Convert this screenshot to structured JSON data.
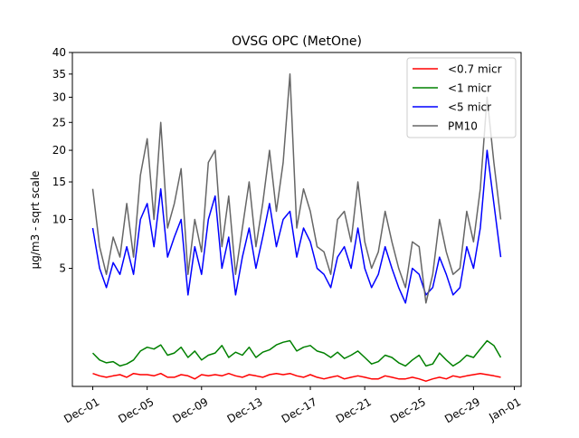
{
  "chart_data": {
    "type": "line",
    "title": "OVSG OPC (MetOne)",
    "xlabel": "",
    "ylabel": "μg/m3 - sqrt scale",
    "y_scale": "sqrt",
    "ylim": [
      0,
      40
    ],
    "xlim": [
      "2019-11-29T12:00",
      "2020-01-01T12:00"
    ],
    "x_ticks": [
      "Dec-01",
      "Dec-05",
      "Dec-09",
      "Dec-13",
      "Dec-17",
      "Dec-21",
      "Dec-25",
      "Dec-29",
      "Jan-01"
    ],
    "x_tick_dates": [
      "2019-12-01",
      "2019-12-05",
      "2019-12-09",
      "2019-12-13",
      "2019-12-17",
      "2019-12-21",
      "2019-12-25",
      "2019-12-29",
      "2020-01-01"
    ],
    "y_ticks": [
      5,
      10,
      15,
      20,
      25,
      30,
      35,
      40
    ],
    "grid": false,
    "legend_position": "top-right",
    "series": [
      {
        "name": "<0.7 micr",
        "color": "#ff0000",
        "x": [
          "2019-12-01T00:00",
          "2019-12-01T12:00",
          "2019-12-02T00:00",
          "2019-12-02T12:00",
          "2019-12-03T00:00",
          "2019-12-03T12:00",
          "2019-12-04T00:00",
          "2019-12-04T12:00",
          "2019-12-05T00:00",
          "2019-12-05T12:00",
          "2019-12-06T00:00",
          "2019-12-06T12:00",
          "2019-12-07T00:00",
          "2019-12-07T12:00",
          "2019-12-08T00:00",
          "2019-12-08T12:00",
          "2019-12-09T00:00",
          "2019-12-09T12:00",
          "2019-12-10T00:00",
          "2019-12-10T12:00",
          "2019-12-11T00:00",
          "2019-12-11T12:00",
          "2019-12-12T00:00",
          "2019-12-12T12:00",
          "2019-12-13T00:00",
          "2019-12-13T12:00",
          "2019-12-14T00:00",
          "2019-12-14T12:00",
          "2019-12-15T00:00",
          "2019-12-15T12:00",
          "2019-12-16T00:00",
          "2019-12-16T12:00",
          "2019-12-17T00:00",
          "2019-12-17T12:00",
          "2019-12-18T00:00",
          "2019-12-18T12:00",
          "2019-12-19T00:00",
          "2019-12-19T12:00",
          "2019-12-20T00:00",
          "2019-12-20T12:00",
          "2019-12-21T00:00",
          "2019-12-21T12:00",
          "2019-12-22T00:00",
          "2019-12-22T12:00",
          "2019-12-23T00:00",
          "2019-12-23T12:00",
          "2019-12-24T00:00",
          "2019-12-24T12:00",
          "2019-12-25T00:00",
          "2019-12-25T12:00",
          "2019-12-26T00:00",
          "2019-12-26T12:00",
          "2019-12-27T00:00",
          "2019-12-27T12:00",
          "2019-12-28T00:00",
          "2019-12-28T12:00",
          "2019-12-29T00:00",
          "2019-12-29T12:00",
          "2019-12-30T00:00",
          "2019-12-30T12:00",
          "2019-12-31T00:00"
        ],
        "values": [
          0.06,
          0.04,
          0.03,
          0.04,
          0.05,
          0.03,
          0.06,
          0.05,
          0.05,
          0.04,
          0.06,
          0.03,
          0.03,
          0.05,
          0.04,
          0.02,
          0.05,
          0.04,
          0.05,
          0.04,
          0.06,
          0.04,
          0.03,
          0.05,
          0.04,
          0.03,
          0.05,
          0.06,
          0.05,
          0.06,
          0.04,
          0.03,
          0.05,
          0.03,
          0.02,
          0.03,
          0.04,
          0.02,
          0.03,
          0.04,
          0.03,
          0.02,
          0.02,
          0.04,
          0.03,
          0.02,
          0.02,
          0.03,
          0.02,
          0.01,
          0.02,
          0.03,
          0.02,
          0.04,
          0.03,
          0.04,
          0.05,
          0.06,
          0.05,
          0.04,
          0.03
        ]
      },
      {
        "name": "<1 micr",
        "color": "#008000",
        "x": [
          "2019-12-01T00:00",
          "2019-12-01T12:00",
          "2019-12-02T00:00",
          "2019-12-02T12:00",
          "2019-12-03T00:00",
          "2019-12-03T12:00",
          "2019-12-04T00:00",
          "2019-12-04T12:00",
          "2019-12-05T00:00",
          "2019-12-05T12:00",
          "2019-12-06T00:00",
          "2019-12-06T12:00",
          "2019-12-07T00:00",
          "2019-12-07T12:00",
          "2019-12-08T00:00",
          "2019-12-08T12:00",
          "2019-12-09T00:00",
          "2019-12-09T12:00",
          "2019-12-10T00:00",
          "2019-12-10T12:00",
          "2019-12-11T00:00",
          "2019-12-11T12:00",
          "2019-12-12T00:00",
          "2019-12-12T12:00",
          "2019-12-13T00:00",
          "2019-12-13T12:00",
          "2019-12-14T00:00",
          "2019-12-14T12:00",
          "2019-12-15T00:00",
          "2019-12-15T12:00",
          "2019-12-16T00:00",
          "2019-12-16T12:00",
          "2019-12-17T00:00",
          "2019-12-17T12:00",
          "2019-12-18T00:00",
          "2019-12-18T12:00",
          "2019-12-19T00:00",
          "2019-12-19T12:00",
          "2019-12-20T00:00",
          "2019-12-20T12:00",
          "2019-12-21T00:00",
          "2019-12-21T12:00",
          "2019-12-22T00:00",
          "2019-12-22T12:00",
          "2019-12-23T00:00",
          "2019-12-23T12:00",
          "2019-12-24T00:00",
          "2019-12-24T12:00",
          "2019-12-25T00:00",
          "2019-12-25T12:00",
          "2019-12-26T00:00",
          "2019-12-26T12:00",
          "2019-12-27T00:00",
          "2019-12-27T12:00",
          "2019-12-28T00:00",
          "2019-12-28T12:00",
          "2019-12-29T00:00",
          "2019-12-29T12:00",
          "2019-12-30T00:00",
          "2019-12-30T12:00",
          "2019-12-31T00:00"
        ],
        "values": [
          0.4,
          0.25,
          0.2,
          0.22,
          0.15,
          0.18,
          0.25,
          0.45,
          0.55,
          0.5,
          0.62,
          0.35,
          0.4,
          0.55,
          0.3,
          0.45,
          0.25,
          0.35,
          0.4,
          0.6,
          0.3,
          0.42,
          0.35,
          0.55,
          0.3,
          0.42,
          0.48,
          0.62,
          0.7,
          0.75,
          0.45,
          0.55,
          0.6,
          0.45,
          0.4,
          0.3,
          0.42,
          0.28,
          0.35,
          0.45,
          0.3,
          0.18,
          0.22,
          0.35,
          0.3,
          0.2,
          0.15,
          0.25,
          0.35,
          0.15,
          0.18,
          0.4,
          0.25,
          0.15,
          0.22,
          0.35,
          0.3,
          0.5,
          0.75,
          0.6,
          0.3
        ]
      },
      {
        "name": "<5 micr",
        "color": "#0000ff",
        "x": [
          "2019-12-01T00:00",
          "2019-12-01T12:00",
          "2019-12-02T00:00",
          "2019-12-02T12:00",
          "2019-12-03T00:00",
          "2019-12-03T12:00",
          "2019-12-04T00:00",
          "2019-12-04T12:00",
          "2019-12-05T00:00",
          "2019-12-05T12:00",
          "2019-12-06T00:00",
          "2019-12-06T12:00",
          "2019-12-07T00:00",
          "2019-12-07T12:00",
          "2019-12-08T00:00",
          "2019-12-08T12:00",
          "2019-12-09T00:00",
          "2019-12-09T12:00",
          "2019-12-10T00:00",
          "2019-12-10T12:00",
          "2019-12-11T00:00",
          "2019-12-11T12:00",
          "2019-12-12T00:00",
          "2019-12-12T12:00",
          "2019-12-13T00:00",
          "2019-12-13T12:00",
          "2019-12-14T00:00",
          "2019-12-14T12:00",
          "2019-12-15T00:00",
          "2019-12-15T12:00",
          "2019-12-16T00:00",
          "2019-12-16T12:00",
          "2019-12-17T00:00",
          "2019-12-17T12:00",
          "2019-12-18T00:00",
          "2019-12-18T12:00",
          "2019-12-19T00:00",
          "2019-12-19T12:00",
          "2019-12-20T00:00",
          "2019-12-20T12:00",
          "2019-12-21T00:00",
          "2019-12-21T12:00",
          "2019-12-22T00:00",
          "2019-12-22T12:00",
          "2019-12-23T00:00",
          "2019-12-23T12:00",
          "2019-12-24T00:00",
          "2019-12-24T12:00",
          "2019-12-25T00:00",
          "2019-12-25T12:00",
          "2019-12-26T00:00",
          "2019-12-26T12:00",
          "2019-12-27T00:00",
          "2019-12-27T12:00",
          "2019-12-28T00:00",
          "2019-12-28T12:00",
          "2019-12-29T00:00",
          "2019-12-29T12:00",
          "2019-12-30T00:00",
          "2019-12-30T12:00",
          "2019-12-31T00:00"
        ],
        "values": [
          9,
          5,
          3.5,
          5.5,
          4.5,
          7,
          4.5,
          10,
          12,
          7,
          14,
          6,
          8,
          10,
          3,
          7,
          4.5,
          10,
          13,
          5,
          8,
          3,
          6,
          9,
          5,
          8,
          12,
          7,
          10,
          11,
          6,
          9,
          7.5,
          5,
          4.5,
          3.5,
          6,
          7,
          5,
          9,
          5,
          3.5,
          4.5,
          7,
          5,
          3.5,
          2.5,
          5,
          4.5,
          3,
          3.5,
          6,
          4.5,
          3,
          3.5,
          7,
          5,
          9,
          20,
          12,
          6
        ]
      },
      {
        "name": "PM10",
        "color": "#666666",
        "x": [
          "2019-12-01T00:00",
          "2019-12-01T12:00",
          "2019-12-02T00:00",
          "2019-12-02T12:00",
          "2019-12-03T00:00",
          "2019-12-03T12:00",
          "2019-12-04T00:00",
          "2019-12-04T12:00",
          "2019-12-05T00:00",
          "2019-12-05T12:00",
          "2019-12-06T00:00",
          "2019-12-06T12:00",
          "2019-12-07T00:00",
          "2019-12-07T12:00",
          "2019-12-08T00:00",
          "2019-12-08T12:00",
          "2019-12-09T00:00",
          "2019-12-09T12:00",
          "2019-12-10T00:00",
          "2019-12-10T12:00",
          "2019-12-11T00:00",
          "2019-12-11T12:00",
          "2019-12-12T00:00",
          "2019-12-12T12:00",
          "2019-12-13T00:00",
          "2019-12-13T12:00",
          "2019-12-14T00:00",
          "2019-12-14T12:00",
          "2019-12-15T00:00",
          "2019-12-15T12:00",
          "2019-12-16T00:00",
          "2019-12-16T12:00",
          "2019-12-17T00:00",
          "2019-12-17T12:00",
          "2019-12-18T00:00",
          "2019-12-18T12:00",
          "2019-12-19T00:00",
          "2019-12-19T12:00",
          "2019-12-20T00:00",
          "2019-12-20T12:00",
          "2019-12-21T00:00",
          "2019-12-21T12:00",
          "2019-12-22T00:00",
          "2019-12-22T12:00",
          "2019-12-23T00:00",
          "2019-12-23T12:00",
          "2019-12-24T00:00",
          "2019-12-24T12:00",
          "2019-12-25T00:00",
          "2019-12-25T12:00",
          "2019-12-26T00:00",
          "2019-12-26T12:00",
          "2019-12-27T00:00",
          "2019-12-27T12:00",
          "2019-12-28T00:00",
          "2019-12-28T12:00",
          "2019-12-29T00:00",
          "2019-12-29T12:00",
          "2019-12-30T00:00",
          "2019-12-30T12:00",
          "2019-12-31T00:00"
        ],
        "values": [
          14,
          7,
          4.5,
          8,
          6,
          12,
          6,
          16,
          22,
          10,
          25,
          9,
          12,
          17,
          4.5,
          10,
          6.5,
          18,
          20,
          7,
          13,
          4.5,
          9,
          15,
          7,
          12,
          20,
          11,
          18,
          35,
          9,
          14,
          11,
          7,
          6.5,
          4.5,
          10,
          11,
          7.5,
          15,
          7.5,
          5,
          6.5,
          11,
          7.5,
          5,
          3.5,
          7.5,
          7,
          2.5,
          4.5,
          10,
          6.5,
          4.5,
          5,
          11,
          7.5,
          14,
          30,
          18,
          10
        ]
      }
    ]
  }
}
